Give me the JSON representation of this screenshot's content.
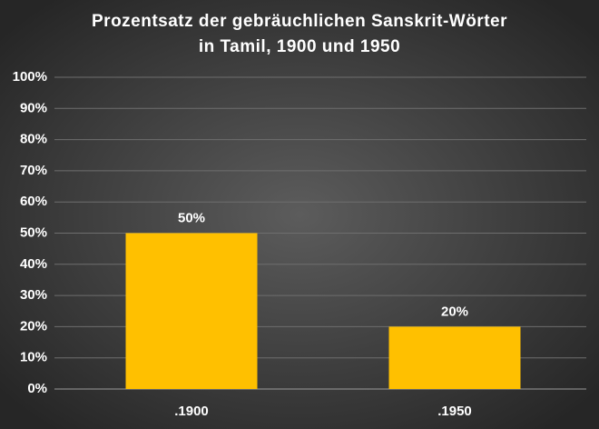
{
  "chart_data": {
    "type": "bar",
    "title": [
      "Prozentsatz der gebräuchlichen Sanskrit-Wörter",
      "in Tamil, 1900 und 1950"
    ],
    "categories": [
      ".1900",
      ".1950"
    ],
    "values": [
      50,
      20
    ],
    "value_labels": [
      "50%",
      "20%"
    ],
    "color": "#ffc000",
    "ylim": [
      0,
      100
    ],
    "yticks": [
      {
        "value": 0,
        "label": "0%"
      },
      {
        "value": 10,
        "label": "10%"
      },
      {
        "value": 20,
        "label": "20%"
      },
      {
        "value": 30,
        "label": "30%"
      },
      {
        "value": 40,
        "label": "40%"
      },
      {
        "value": 50,
        "label": "50%"
      },
      {
        "value": 60,
        "label": "60%"
      },
      {
        "value": 70,
        "label": "70%"
      },
      {
        "value": 80,
        "label": "80%"
      },
      {
        "value": 90,
        "label": "90%"
      },
      {
        "value": 100,
        "label": "100%"
      }
    ],
    "grid": true
  }
}
